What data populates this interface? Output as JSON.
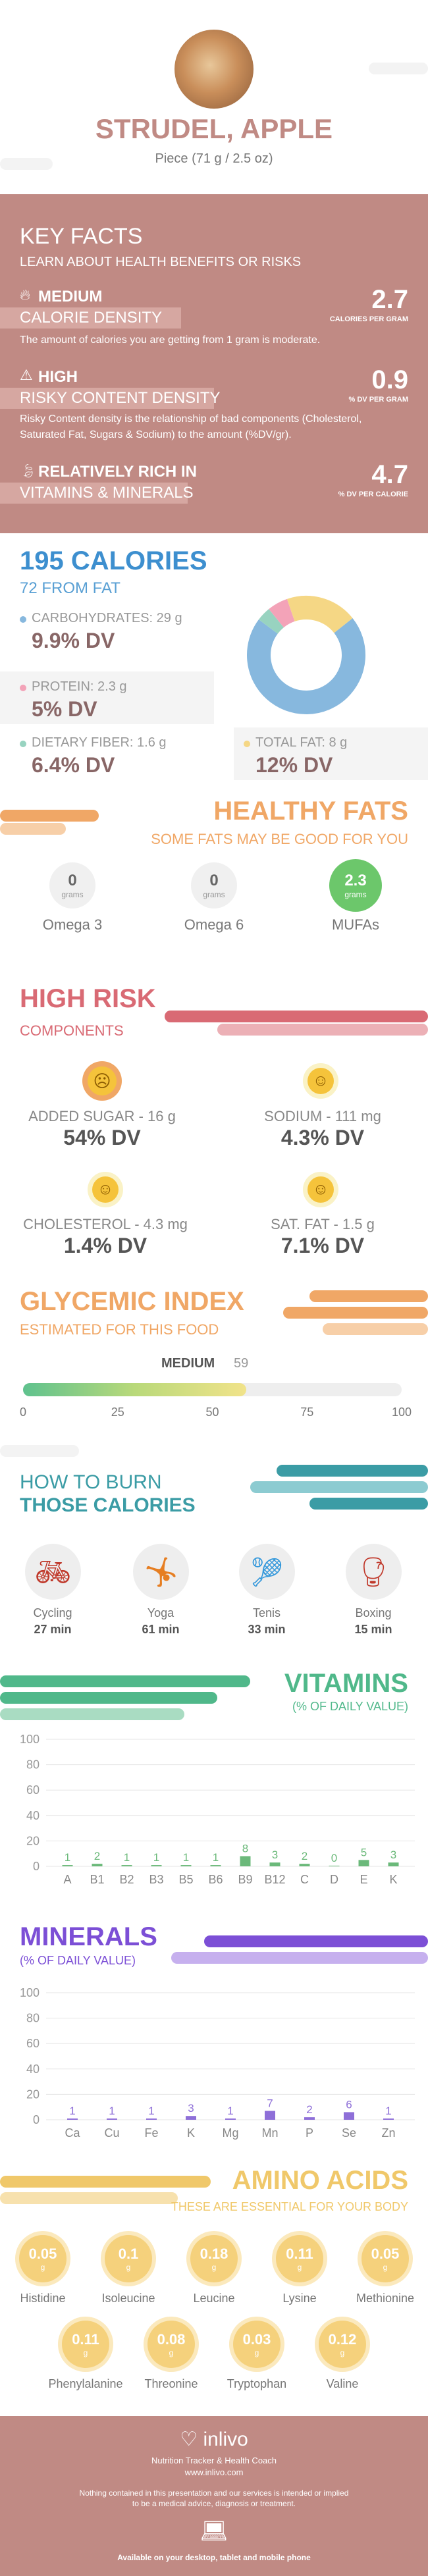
{
  "header": {
    "title": "STRUDEL, APPLE",
    "serving": "Piece (71 g / 2.5 oz)"
  },
  "key_facts": {
    "title": "KEY FACTS",
    "subtitle": "LEARN ABOUT HEALTH BENEFITS OR RISKS",
    "items": [
      {
        "level": "MEDIUM",
        "label": "CALORIE DENSITY",
        "value": "2.7",
        "unit": "CALORIES PER GRAM",
        "desc": "The amount of calories you are getting from 1 gram is moderate."
      },
      {
        "level": "HIGH",
        "label": "RISKY CONTENT DENSITY",
        "value": "0.9",
        "unit": "% DV PER GRAM",
        "desc": "Risky Content density is the relationship of bad components (Cholesterol, Saturated Fat, Sugars & Sodium) to the amount (%DV/gr)."
      },
      {
        "level": "RELATIVELY RICH IN",
        "label": "VITAMINS & MINERALS",
        "value": "4.7",
        "unit": "% DV PER CALORIE",
        "desc": ""
      }
    ]
  },
  "calories": {
    "title": "195 CALORIES",
    "from_fat": "72 FROM FAT",
    "carbs_label": "CARBOHYDRATES: 29 g",
    "carbs_dv": "9.9% DV",
    "protein_label": "PROTEIN: 2.3 g",
    "protein_dv": "5% DV",
    "fiber_label": "DIETARY FIBER: 1.6 g",
    "fiber_dv": "6.4% DV",
    "fat_label": "TOTAL FAT: 8 g",
    "fat_dv": "12% DV",
    "donut": [
      {
        "name": "carbs",
        "value": 29,
        "color": "#87b8de"
      },
      {
        "name": "fiber",
        "value": 1.6,
        "color": "#98d3c0"
      },
      {
        "name": "protein",
        "value": 2.3,
        "color": "#f3a3b8"
      },
      {
        "name": "fat",
        "value": 8,
        "color": "#f5d785"
      }
    ]
  },
  "healthy_fats": {
    "title": "HEALTHY FATS",
    "subtitle": "SOME FATS MAY BE GOOD FOR YOU",
    "unit": "grams",
    "items": [
      {
        "value": "0",
        "label": "Omega 3",
        "color": "#f0f0f0",
        "text": "#666"
      },
      {
        "value": "0",
        "label": "Omega 6",
        "color": "#f0f0f0",
        "text": "#666"
      },
      {
        "value": "2.3",
        "label": "MUFAs",
        "color": "#6cc76b",
        "text": "#fff"
      }
    ]
  },
  "high_risk": {
    "title": "HIGH RISK",
    "subtitle": "COMPONENTS",
    "items": [
      {
        "label": "ADDED SUGAR - 16 g",
        "dv": "54% DV",
        "mood": "sad"
      },
      {
        "label": "SODIUM - 111 mg",
        "dv": "4.3% DV",
        "mood": "happy"
      },
      {
        "label": "CHOLESTEROL - 4.3 mg",
        "dv": "1.4% DV",
        "mood": "happy"
      },
      {
        "label": "SAT. FAT - 1.5 g",
        "dv": "7.1% DV",
        "mood": "happy"
      }
    ]
  },
  "glycemic": {
    "title": "GLYCEMIC INDEX",
    "subtitle": "ESTIMATED FOR THIS FOOD",
    "level": "MEDIUM",
    "value": "59",
    "gi_value": 59,
    "ticks": [
      "0",
      "25",
      "50",
      "75",
      "100"
    ]
  },
  "burn": {
    "title1": "HOW TO BURN",
    "title2": "THOSE CALORIES",
    "items": [
      {
        "name": "Cycling",
        "time": "27 min"
      },
      {
        "name": "Yoga",
        "time": "61 min"
      },
      {
        "name": "Tenis",
        "time": "33 min"
      },
      {
        "name": "Boxing",
        "time": "15 min"
      }
    ]
  },
  "vitamins": {
    "title": "VITAMINS",
    "subtitle": "(% OF DAILY VALUE)",
    "y_ticks": [
      "100",
      "80",
      "60",
      "40",
      "20",
      "0"
    ],
    "bars": [
      {
        "label": "A",
        "value": 1
      },
      {
        "label": "B1",
        "value": 2
      },
      {
        "label": "B2",
        "value": 1
      },
      {
        "label": "B3",
        "value": 1
      },
      {
        "label": "B5",
        "value": 1
      },
      {
        "label": "B6",
        "value": 1
      },
      {
        "label": "B9",
        "value": 8
      },
      {
        "label": "B12",
        "value": 3
      },
      {
        "label": "C",
        "value": 2
      },
      {
        "label": "D",
        "value": 0
      },
      {
        "label": "E",
        "value": 5
      },
      {
        "label": "K",
        "value": 3
      }
    ],
    "color": "#6bb97a"
  },
  "minerals": {
    "title": "MINERALS",
    "subtitle": "(% OF DAILY VALUE)",
    "y_ticks": [
      "100",
      "80",
      "60",
      "40",
      "20",
      "0"
    ],
    "bars": [
      {
        "label": "Ca",
        "value": 1
      },
      {
        "label": "Cu",
        "value": 1
      },
      {
        "label": "Fe",
        "value": 1
      },
      {
        "label": "K",
        "value": 3
      },
      {
        "label": "Mg",
        "value": 1
      },
      {
        "label": "Mn",
        "value": 7
      },
      {
        "label": "P",
        "value": 2
      },
      {
        "label": "Se",
        "value": 6
      },
      {
        "label": "Zn",
        "value": 1
      }
    ],
    "color": "#8e6fd8"
  },
  "amino": {
    "title": "AMINO ACIDS",
    "subtitle": "THESE ARE ESSENTIAL FOR YOUR BODY",
    "unit": "g",
    "row1": [
      {
        "value": "0.05",
        "label": "Histidine"
      },
      {
        "value": "0.1",
        "label": "Isoleucine"
      },
      {
        "value": "0.18",
        "label": "Leucine"
      },
      {
        "value": "0.11",
        "label": "Lysine"
      },
      {
        "value": "0.05",
        "label": "Methionine"
      }
    ],
    "row2": [
      {
        "value": "0.11",
        "label": "Phenylalanine"
      },
      {
        "value": "0.08",
        "label": "Threonine"
      },
      {
        "value": "0.03",
        "label": "Tryptophan"
      },
      {
        "value": "0.12",
        "label": "Valine"
      }
    ]
  },
  "footer": {
    "brand": "inlivo",
    "tagline": "Nutrition Tracker & Health Coach",
    "url": "www.inlivo.com",
    "disclaimer1": "Nothing contained in this presentation and our services is intended or implied",
    "disclaimer2": "to be a medical advice, diagnosis or treatment.",
    "available": "Available on your desktop, tablet and mobile phone"
  },
  "colors": {
    "rose": "#c08a84",
    "rose_dark": "#b17b76",
    "blue": "#3d8fcf",
    "orange": "#f0a766",
    "red": "#d96a74",
    "teal": "#3b9ca5",
    "green": "#50b88a",
    "purple": "#7c4fd6",
    "amber": "#f0c86a"
  }
}
